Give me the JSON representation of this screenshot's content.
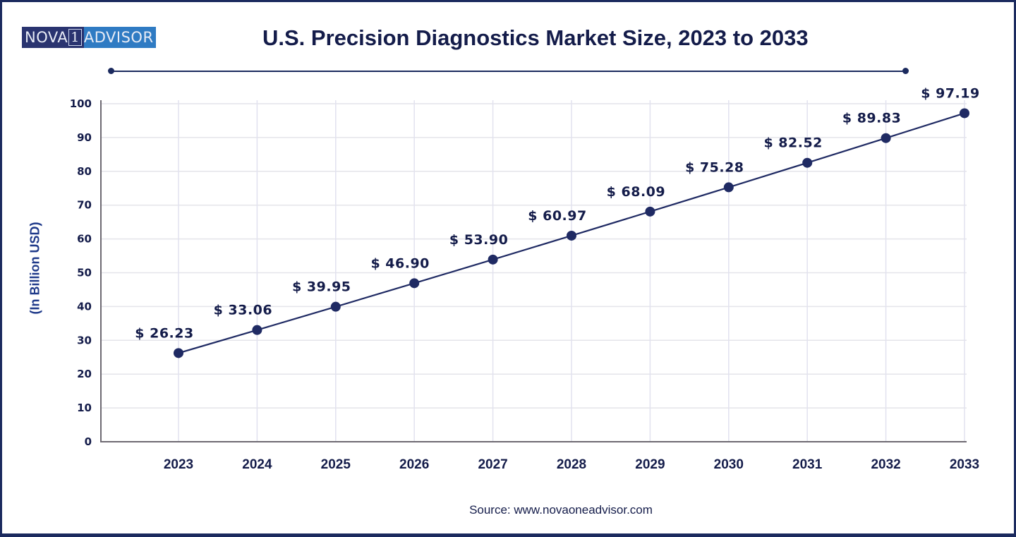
{
  "brand": {
    "logo_left": "NOVA",
    "logo_box": "1",
    "logo_right": "ADVISOR"
  },
  "source_text": "Source: www.novaoneadvisor.com",
  "chart_data": {
    "type": "line",
    "title": "U.S. Precision Diagnostics Market Size, 2023 to 2033",
    "xlabel": "",
    "ylabel": "(In Billion USD)",
    "categories": [
      "2023",
      "2024",
      "2025",
      "2026",
      "2027",
      "2028",
      "2029",
      "2030",
      "2031",
      "2032",
      "2033"
    ],
    "series": [
      {
        "name": "Market Size",
        "values": [
          26.23,
          33.06,
          39.95,
          46.9,
          53.9,
          60.97,
          68.09,
          75.28,
          82.52,
          89.83,
          97.19
        ],
        "labels": [
          "$ 26.23",
          "$ 33.06",
          "$ 39.95",
          "$ 46.90",
          "$ 53.90",
          "$ 60.97",
          "$ 68.09",
          "$ 75.28",
          "$ 82.52",
          "$ 89.83",
          "$ 97.19"
        ],
        "color": "#1f2a63"
      }
    ],
    "ylim": [
      0,
      100
    ],
    "yticks": [
      0,
      10,
      20,
      30,
      40,
      50,
      60,
      70,
      80,
      90,
      100
    ],
    "grid": true,
    "legend": "none"
  }
}
